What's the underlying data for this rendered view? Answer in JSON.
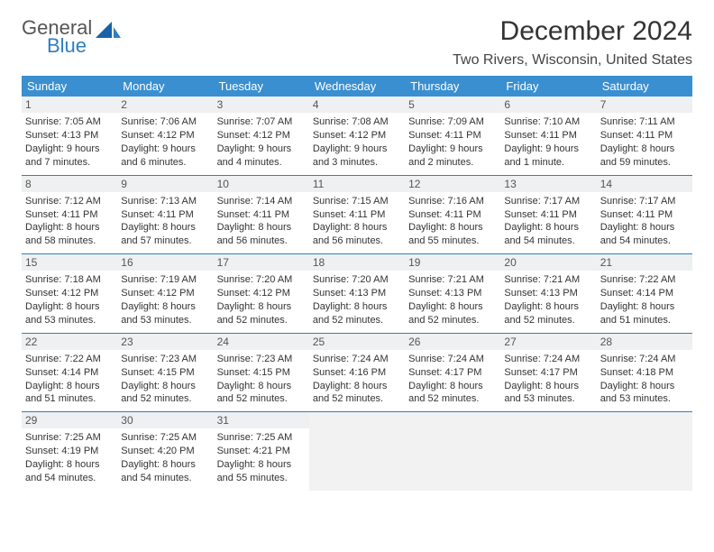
{
  "logo": {
    "top": "General",
    "bottom": "Blue"
  },
  "header": {
    "title": "December 2024",
    "location": "Two Rivers, Wisconsin, United States"
  },
  "colors": {
    "header_bg": "#3a8fd0",
    "rule": "#2e7fc1",
    "daynum_bg": "#eef0f1",
    "blank_bg": "#f2f2f2"
  },
  "dow": [
    "Sunday",
    "Monday",
    "Tuesday",
    "Wednesday",
    "Thursday",
    "Friday",
    "Saturday"
  ],
  "days": [
    {
      "n": "1",
      "sr": "7:05 AM",
      "ss": "4:13 PM",
      "dl": "9 hours and 7 minutes."
    },
    {
      "n": "2",
      "sr": "7:06 AM",
      "ss": "4:12 PM",
      "dl": "9 hours and 6 minutes."
    },
    {
      "n": "3",
      "sr": "7:07 AM",
      "ss": "4:12 PM",
      "dl": "9 hours and 4 minutes."
    },
    {
      "n": "4",
      "sr": "7:08 AM",
      "ss": "4:12 PM",
      "dl": "9 hours and 3 minutes."
    },
    {
      "n": "5",
      "sr": "7:09 AM",
      "ss": "4:11 PM",
      "dl": "9 hours and 2 minutes."
    },
    {
      "n": "6",
      "sr": "7:10 AM",
      "ss": "4:11 PM",
      "dl": "9 hours and 1 minute."
    },
    {
      "n": "7",
      "sr": "7:11 AM",
      "ss": "4:11 PM",
      "dl": "8 hours and 59 minutes."
    },
    {
      "n": "8",
      "sr": "7:12 AM",
      "ss": "4:11 PM",
      "dl": "8 hours and 58 minutes."
    },
    {
      "n": "9",
      "sr": "7:13 AM",
      "ss": "4:11 PM",
      "dl": "8 hours and 57 minutes."
    },
    {
      "n": "10",
      "sr": "7:14 AM",
      "ss": "4:11 PM",
      "dl": "8 hours and 56 minutes."
    },
    {
      "n": "11",
      "sr": "7:15 AM",
      "ss": "4:11 PM",
      "dl": "8 hours and 56 minutes."
    },
    {
      "n": "12",
      "sr": "7:16 AM",
      "ss": "4:11 PM",
      "dl": "8 hours and 55 minutes."
    },
    {
      "n": "13",
      "sr": "7:17 AM",
      "ss": "4:11 PM",
      "dl": "8 hours and 54 minutes."
    },
    {
      "n": "14",
      "sr": "7:17 AM",
      "ss": "4:11 PM",
      "dl": "8 hours and 54 minutes."
    },
    {
      "n": "15",
      "sr": "7:18 AM",
      "ss": "4:12 PM",
      "dl": "8 hours and 53 minutes."
    },
    {
      "n": "16",
      "sr": "7:19 AM",
      "ss": "4:12 PM",
      "dl": "8 hours and 53 minutes."
    },
    {
      "n": "17",
      "sr": "7:20 AM",
      "ss": "4:12 PM",
      "dl": "8 hours and 52 minutes."
    },
    {
      "n": "18",
      "sr": "7:20 AM",
      "ss": "4:13 PM",
      "dl": "8 hours and 52 minutes."
    },
    {
      "n": "19",
      "sr": "7:21 AM",
      "ss": "4:13 PM",
      "dl": "8 hours and 52 minutes."
    },
    {
      "n": "20",
      "sr": "7:21 AM",
      "ss": "4:13 PM",
      "dl": "8 hours and 52 minutes."
    },
    {
      "n": "21",
      "sr": "7:22 AM",
      "ss": "4:14 PM",
      "dl": "8 hours and 51 minutes."
    },
    {
      "n": "22",
      "sr": "7:22 AM",
      "ss": "4:14 PM",
      "dl": "8 hours and 51 minutes."
    },
    {
      "n": "23",
      "sr": "7:23 AM",
      "ss": "4:15 PM",
      "dl": "8 hours and 52 minutes."
    },
    {
      "n": "24",
      "sr": "7:23 AM",
      "ss": "4:15 PM",
      "dl": "8 hours and 52 minutes."
    },
    {
      "n": "25",
      "sr": "7:24 AM",
      "ss": "4:16 PM",
      "dl": "8 hours and 52 minutes."
    },
    {
      "n": "26",
      "sr": "7:24 AM",
      "ss": "4:17 PM",
      "dl": "8 hours and 52 minutes."
    },
    {
      "n": "27",
      "sr": "7:24 AM",
      "ss": "4:17 PM",
      "dl": "8 hours and 53 minutes."
    },
    {
      "n": "28",
      "sr": "7:24 AM",
      "ss": "4:18 PM",
      "dl": "8 hours and 53 minutes."
    },
    {
      "n": "29",
      "sr": "7:25 AM",
      "ss": "4:19 PM",
      "dl": "8 hours and 54 minutes."
    },
    {
      "n": "30",
      "sr": "7:25 AM",
      "ss": "4:20 PM",
      "dl": "8 hours and 54 minutes."
    },
    {
      "n": "31",
      "sr": "7:25 AM",
      "ss": "4:21 PM",
      "dl": "8 hours and 55 minutes."
    }
  ],
  "labels": {
    "sunrise": "Sunrise: ",
    "sunset": "Sunset: ",
    "daylight": "Daylight: "
  },
  "layout": {
    "start_dow": 0,
    "total_cells": 35
  }
}
